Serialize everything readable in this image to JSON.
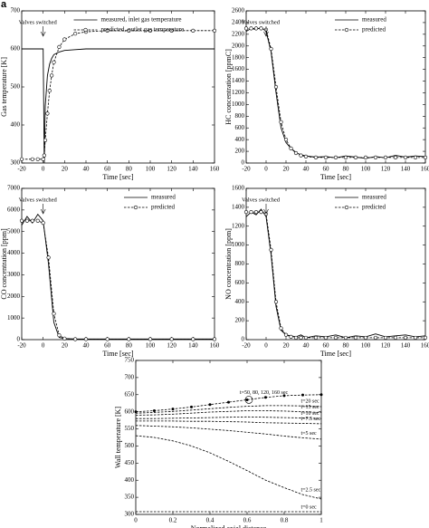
{
  "panel_label": "a",
  "chart_data": [
    {
      "type": "line",
      "ylabel": "Gas temperature [K]",
      "xlabel": "Time [sec]",
      "legend": "upper center",
      "annotation": {
        "text": "Valves switched",
        "x": 0
      },
      "xlim": [
        -20,
        160
      ],
      "xticks": [
        -20,
        0,
        20,
        40,
        60,
        80,
        100,
        120,
        140,
        160
      ],
      "ylim": [
        300,
        700
      ],
      "yticks": [
        300,
        400,
        500,
        600,
        700
      ],
      "x": [
        -20,
        -10,
        -5,
        0,
        1,
        2,
        4,
        6,
        8,
        10,
        15,
        20,
        30,
        40,
        60,
        80,
        100,
        120,
        140,
        160
      ],
      "series": [
        {
          "name": "measured, inlet gas temperature",
          "color": "#000000",
          "dash": false,
          "markers": false,
          "values": [
            600,
            600,
            600,
            600,
            300,
            450,
            530,
            560,
            575,
            585,
            592,
            596,
            598,
            600,
            600,
            600,
            600,
            600,
            600,
            600
          ]
        },
        {
          "name": "predicted, outlet gas temperature",
          "color": "#000000",
          "dash": true,
          "markers": true,
          "values": [
            310,
            310,
            310,
            310,
            320,
            360,
            430,
            490,
            530,
            565,
            605,
            625,
            640,
            645,
            648,
            648,
            648,
            648,
            648,
            648
          ]
        }
      ]
    },
    {
      "type": "line",
      "ylabel": "HC concentration [ppmC]",
      "xlabel": "Time [sec]",
      "legend": "upper right",
      "annotation": {
        "text": "Valves switched",
        "x": 0
      },
      "xlim": [
        -20,
        160
      ],
      "xticks": [
        -20,
        0,
        20,
        40,
        60,
        80,
        100,
        120,
        140,
        160
      ],
      "ylim": [
        0,
        2600
      ],
      "yticks": [
        0,
        200,
        400,
        600,
        800,
        1000,
        1200,
        1400,
        1600,
        1800,
        2000,
        2200,
        2400,
        2600
      ],
      "x": [
        -20,
        -15,
        -10,
        -5,
        0,
        5,
        10,
        15,
        20,
        25,
        30,
        35,
        40,
        50,
        60,
        70,
        80,
        90,
        100,
        110,
        120,
        130,
        140,
        150,
        160
      ],
      "series": [
        {
          "name": "measured",
          "color": "#000000",
          "dash": false,
          "markers": false,
          "values": [
            2250,
            2300,
            2280,
            2320,
            2250,
            1900,
            1200,
            600,
            350,
            250,
            180,
            140,
            120,
            100,
            110,
            90,
            120,
            100,
            80,
            110,
            90,
            130,
            100,
            120,
            110
          ]
        },
        {
          "name": "predicted",
          "color": "#000000",
          "dash": true,
          "markers": true,
          "values": [
            2300,
            2300,
            2300,
            2300,
            2280,
            1950,
            1300,
            700,
            400,
            250,
            170,
            130,
            110,
            95,
            95,
            95,
            95,
            95,
            95,
            95,
            95,
            95,
            95,
            95,
            95
          ]
        }
      ]
    },
    {
      "type": "line",
      "ylabel": "CO concentration [ppm]",
      "xlabel": "Time [sec]",
      "legend": "upper right",
      "annotation": {
        "text": "Valves switched",
        "x": 0
      },
      "xlim": [
        -20,
        160
      ],
      "xticks": [
        -20,
        0,
        20,
        40,
        60,
        80,
        100,
        120,
        140,
        160
      ],
      "ylim": [
        0,
        7000
      ],
      "yticks": [
        0,
        1000,
        2000,
        3000,
        4000,
        5000,
        6000,
        7000
      ],
      "x": [
        -20,
        -15,
        -10,
        -5,
        0,
        5,
        10,
        15,
        20,
        30,
        40,
        60,
        80,
        100,
        120,
        140,
        160
      ],
      "series": [
        {
          "name": "measured",
          "color": "#000000",
          "dash": false,
          "markers": false,
          "values": [
            5300,
            5700,
            5400,
            5800,
            5500,
            3500,
            800,
            100,
            50,
            30,
            30,
            30,
            30,
            30,
            30,
            30,
            30
          ]
        },
        {
          "name": "predicted",
          "color": "#000000",
          "dash": true,
          "markers": true,
          "values": [
            5500,
            5500,
            5500,
            5500,
            5400,
            3800,
            1200,
            200,
            50,
            20,
            20,
            20,
            20,
            20,
            20,
            20,
            20
          ]
        }
      ]
    },
    {
      "type": "line",
      "ylabel": "NO concentration [ppm]",
      "xlabel": "Time [sec]",
      "legend": "upper right",
      "annotation": {
        "text": "Valves switched",
        "x": 0
      },
      "xlim": [
        -20,
        160
      ],
      "xticks": [
        -20,
        0,
        20,
        40,
        60,
        80,
        100,
        120,
        140,
        160
      ],
      "ylim": [
        0,
        1600
      ],
      "yticks": [
        0,
        200,
        400,
        600,
        800,
        1000,
        1200,
        1400,
        1600
      ],
      "x": [
        -20,
        -15,
        -10,
        -5,
        0,
        5,
        10,
        15,
        20,
        25,
        30,
        35,
        40,
        50,
        60,
        70,
        80,
        90,
        100,
        110,
        120,
        130,
        140,
        150,
        160
      ],
      "series": [
        {
          "name": "measured",
          "color": "#000000",
          "dash": false,
          "markers": false,
          "values": [
            1300,
            1350,
            1320,
            1380,
            1300,
            900,
            350,
            100,
            50,
            40,
            30,
            50,
            20,
            40,
            30,
            50,
            20,
            40,
            30,
            60,
            30,
            40,
            50,
            30,
            40
          ]
        },
        {
          "name": "predicted",
          "color": "#000000",
          "dash": true,
          "markers": true,
          "values": [
            1350,
            1350,
            1350,
            1350,
            1330,
            950,
            400,
            120,
            50,
            30,
            20,
            20,
            20,
            20,
            20,
            20,
            20,
            20,
            20,
            20,
            20,
            20,
            20,
            20,
            20
          ]
        }
      ]
    },
    {
      "type": "line",
      "ylabel": "Wall temperature [K]",
      "xlabel": "Normalized axial distance",
      "xlim": [
        0,
        1
      ],
      "xticks": [
        0,
        0.2,
        0.4,
        0.6,
        0.8,
        1
      ],
      "ylim": [
        300,
        750
      ],
      "yticks": [
        300,
        350,
        400,
        450,
        500,
        550,
        600,
        650,
        700,
        750
      ],
      "x": [
        0,
        0.1,
        0.2,
        0.3,
        0.4,
        0.5,
        0.6,
        0.7,
        0.8,
        0.9,
        1
      ],
      "series": [
        {
          "label": "t=50, 80, 120, 160 sec",
          "color": "#000000",
          "dash": true,
          "markers": true,
          "values": [
            600,
            603,
            608,
            614,
            621,
            628,
            635,
            642,
            647,
            649,
            650
          ]
        },
        {
          "label": "t=20 sec",
          "color": "#000000",
          "dash": true,
          "markers": false,
          "values": [
            596,
            598,
            601,
            605,
            609,
            613,
            616,
            618,
            618,
            617,
            615
          ]
        },
        {
          "label": "t=15 sec",
          "color": "#000000",
          "dash": true,
          "markers": false,
          "values": [
            590,
            591,
            593,
            596,
            599,
            601,
            603,
            603,
            602,
            600,
            598
          ]
        },
        {
          "label": "t=10 sec",
          "color": "#000000",
          "dash": true,
          "markers": false,
          "values": [
            580,
            580,
            581,
            582,
            583,
            584,
            585,
            584,
            583,
            582,
            580
          ]
        },
        {
          "label": "t=7.5 sec",
          "color": "#000000",
          "dash": true,
          "markers": false,
          "values": [
            573,
            573,
            573,
            572,
            572,
            571,
            570,
            568,
            567,
            566,
            565
          ]
        },
        {
          "label": "t=5 sec",
          "color": "#000000",
          "dash": true,
          "markers": false,
          "values": [
            560,
            558,
            556,
            553,
            549,
            545,
            540,
            535,
            529,
            524,
            520
          ]
        },
        {
          "label": "t=2.5 sec",
          "color": "#000000",
          "dash": true,
          "markers": false,
          "values": [
            530,
            525,
            515,
            500,
            480,
            455,
            428,
            400,
            378,
            358,
            345
          ]
        },
        {
          "label": "t=0 sec",
          "color": "#000000",
          "dash": true,
          "markers": false,
          "values": [
            308,
            308,
            308,
            308,
            308,
            308,
            308,
            308,
            308,
            308,
            308
          ]
        }
      ]
    }
  ]
}
